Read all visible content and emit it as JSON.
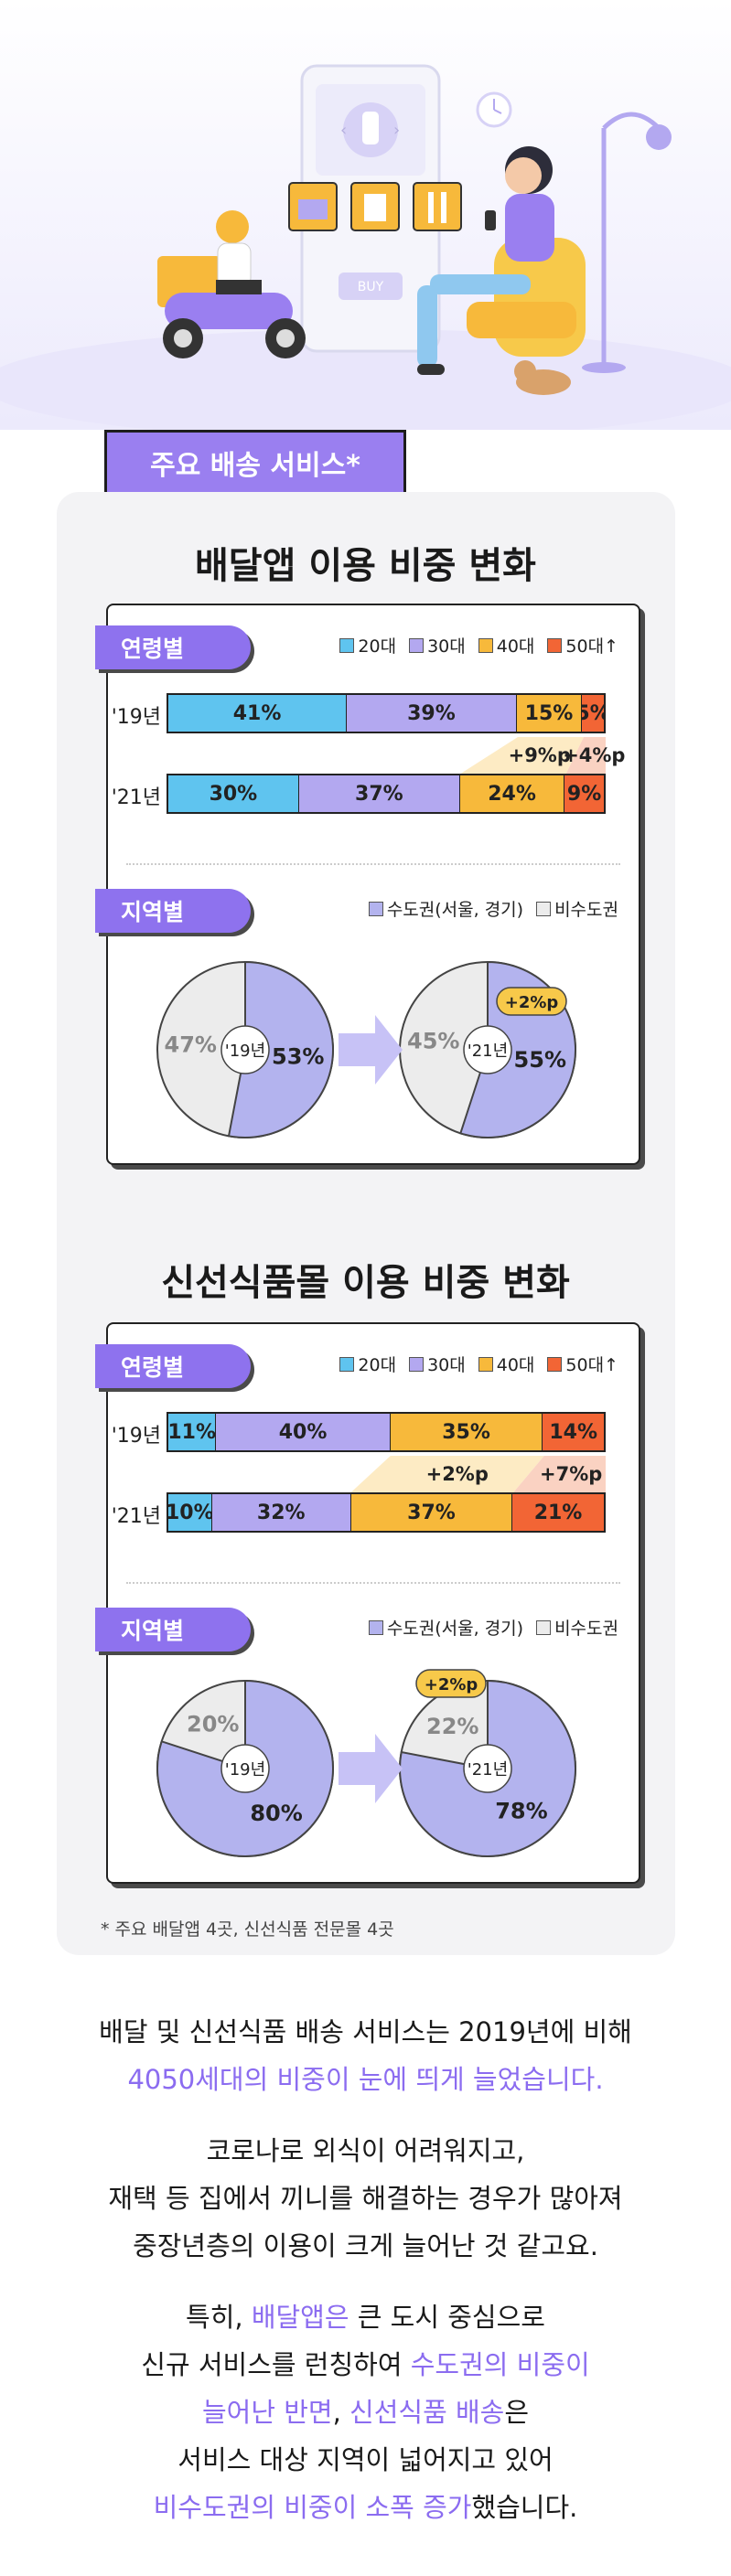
{
  "section_tag": "주요 배송 서비스*",
  "hero": {
    "buy_label": "BUY"
  },
  "colors": {
    "age20": "#5fc4ef",
    "age30": "#b3a8f0",
    "age40": "#f7b93b",
    "age50": "#f26535",
    "metro": "#b3b3ee",
    "nonmetro": "#ececec",
    "accent": "#8b6cf0"
  },
  "delivery": {
    "title": "배달앱 이용 비중 변화",
    "age_label": "연령별",
    "region_label": "지역별",
    "legend_age": [
      "20대",
      "30대",
      "40대",
      "50대↑"
    ],
    "legend_region": [
      "수도권(서울, 경기)",
      "비수도권"
    ],
    "diff_40": "+9%p",
    "diff_50": "+4%p",
    "pie_diff": "+2%p"
  },
  "fresh": {
    "title": "신선식품몰 이용 비중 변화",
    "age_label": "연령별",
    "region_label": "지역별",
    "legend_age": [
      "20대",
      "30대",
      "40대",
      "50대↑"
    ],
    "legend_region": [
      "수도권(서울, 경기)",
      "비수도권"
    ],
    "diff_40": "+2%p",
    "diff_50": "+7%p",
    "pie_diff": "+2%p"
  },
  "chart_data": [
    {
      "type": "bar",
      "title": "배달앱 이용 비중 변화",
      "subtitle": "연령별",
      "categories": [
        "'19년",
        "'21년"
      ],
      "series": [
        {
          "name": "20대",
          "values": [
            41,
            30
          ]
        },
        {
          "name": "30대",
          "values": [
            39,
            37
          ]
        },
        {
          "name": "40대",
          "values": [
            15,
            24
          ]
        },
        {
          "name": "50대↑",
          "values": [
            5,
            9
          ]
        }
      ],
      "stacked": true,
      "unit": "%",
      "legend": "top-right"
    },
    {
      "type": "pie",
      "title": "배달앱 이용 비중 변화",
      "subtitle": "지역별",
      "charts": [
        {
          "label": "'19년",
          "values": [
            53,
            47
          ]
        },
        {
          "label": "'21년",
          "values": [
            55,
            45
          ]
        }
      ],
      "labels": [
        "수도권(서울, 경기)",
        "비수도권"
      ],
      "unit": "%",
      "legend": "top-right"
    },
    {
      "type": "bar",
      "title": "신선식품몰 이용 비중 변화",
      "subtitle": "연령별",
      "categories": [
        "'19년",
        "'21년"
      ],
      "series": [
        {
          "name": "20대",
          "values": [
            11,
            10
          ]
        },
        {
          "name": "30대",
          "values": [
            40,
            32
          ]
        },
        {
          "name": "40대",
          "values": [
            35,
            37
          ]
        },
        {
          "name": "50대↑",
          "values": [
            14,
            21
          ]
        }
      ],
      "stacked": true,
      "unit": "%",
      "legend": "top-right"
    },
    {
      "type": "pie",
      "title": "신선식품몰 이용 비중 변화",
      "subtitle": "지역별",
      "charts": [
        {
          "label": "'19년",
          "values": [
            80,
            20
          ]
        },
        {
          "label": "'21년",
          "values": [
            78,
            22
          ]
        }
      ],
      "labels": [
        "수도권(서울, 경기)",
        "비수도권"
      ],
      "unit": "%",
      "legend": "top-right"
    }
  ],
  "footnote": "* 주요 배달앱 4곳, 신선식품 전문몰 4곳",
  "paragraph1": {
    "line1": "배달 및 신선식품 배송 서비스는 2019년에 비해",
    "line2": "4050세대의 비중이 눈에 띄게 늘었습니다."
  },
  "paragraph2": {
    "line1": "코로나로 외식이 어려워지고,",
    "line2": "재택 등 집에서 끼니를 해결하는 경우가 많아져",
    "line3": "중장년층의 이용이 크게 늘어난 것 같고요."
  },
  "paragraph3": {
    "l1a": "특히, ",
    "l1b": "배달앱은",
    "l1c": " 큰 도시 중심으로",
    "l2a": "신규 서비스를 런칭하여 ",
    "l2b": "수도권의 비중이",
    "l3a": "늘어난 반면",
    "l3b": ", ",
    "l3c": "신선식품 배송",
    "l3d": "은",
    "l4": "서비스 대상 지역이 넓어지고 있어",
    "l5a": "비수도권의 비중이 소폭 증가",
    "l5b": "했습니다."
  }
}
